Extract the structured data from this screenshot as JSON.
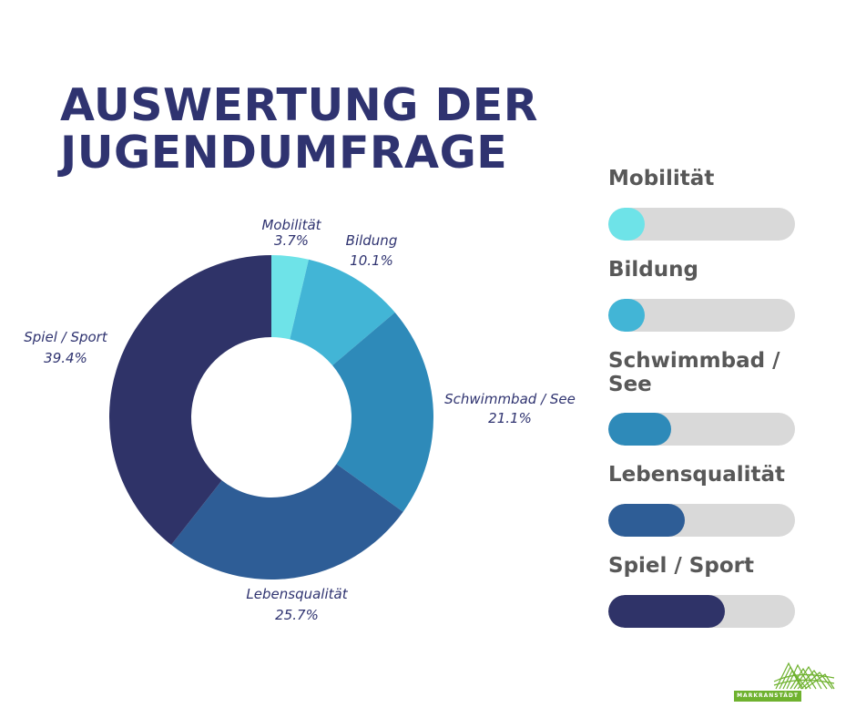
{
  "title_line1": "AUSWERTUNG DER",
  "title_line2": "JUGENDUMFRAGE",
  "chart_data": [
    {
      "type": "pie",
      "variant": "donut",
      "categories": [
        "Mobilität",
        "Bildung",
        "Schwimmbad / See",
        "Lebensqualität",
        "Spiel / Sport"
      ],
      "values": [
        3.7,
        10.1,
        21.1,
        25.7,
        39.4
      ],
      "value_labels": [
        "3.7%",
        "10.1%",
        "21.1%",
        "25.7%",
        "39.4%"
      ],
      "colors": [
        "#6ee3e8",
        "#42b5d6",
        "#2e8ab9",
        "#2e5d96",
        "#2f3368"
      ],
      "unit": "%"
    },
    {
      "type": "bar",
      "orientation": "horizontal",
      "categories": [
        "Mobilität",
        "Bildung",
        "Schwimmbad / See",
        "Lebensqualität",
        "Spiel / Sport"
      ],
      "values": [
        3.7,
        10.1,
        21.1,
        25.7,
        39.4
      ],
      "xlim": [
        0,
        63
      ],
      "track_color": "#d9d9d9",
      "colors": [
        "#6ee3e8",
        "#42b5d6",
        "#2e8ab9",
        "#2e5d96",
        "#2f3368"
      ]
    }
  ],
  "bar_titles": [
    "Mobilität",
    "Bildung",
    "Schwimmbad /\nSee",
    "Lebensqualität",
    "Spiel / Sport"
  ],
  "logo": {
    "text": "MARKRANSTÄDT",
    "color": "#6fb22f",
    "icon": "city-skyline-lines-logo"
  }
}
